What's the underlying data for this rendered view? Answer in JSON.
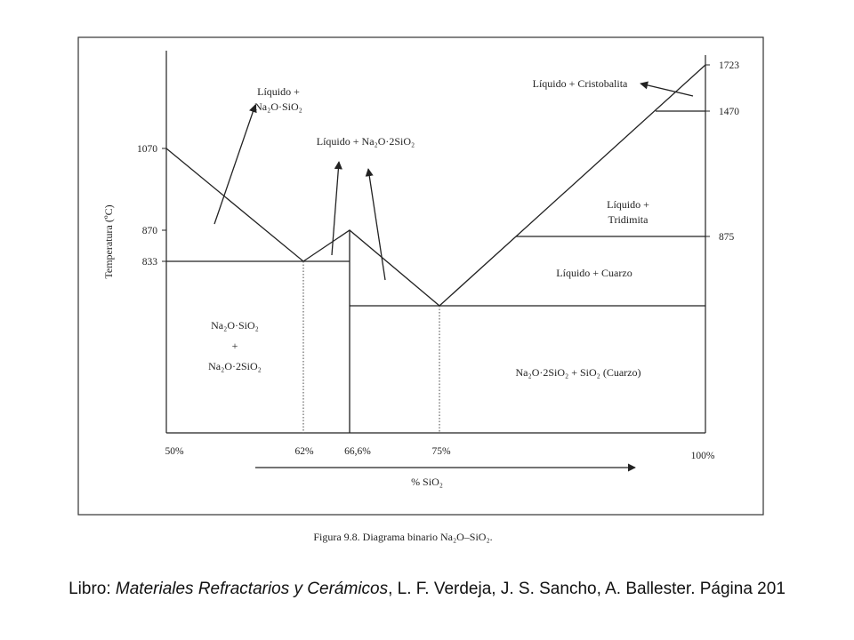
{
  "diagram": {
    "y_axis_label": "Temperatura (ºC)",
    "y_ticks_left": [
      "1070",
      "870",
      "833"
    ],
    "y_ticks_right": [
      "1723",
      "1470",
      "875"
    ],
    "x_ticks": [
      "50%",
      "62%",
      "66,6%",
      "75%",
      "100%"
    ],
    "x_axis_label": "%  SiO₂",
    "regions": {
      "liq_metasilicate_l1": "Líquido +",
      "liq_metasilicate_l2": "Na₂O·SiO₂",
      "liq_disilicate": "Líquido + Na₂O·2SiO₂",
      "liq_cristobalite": "Líquido + Cristobalita",
      "liq_tridymite_l1": "Líquido +",
      "liq_tridymite_l2": "Tridimita",
      "liq_quartz": "Líquido + Cuarzo",
      "solid_left_l1": "Na₂O·SiO₂",
      "solid_left_l2": "+",
      "solid_left_l3": "Na₂O·2SiO₂",
      "solid_right": "Na₂O·2SiO₂  +  SiO₂ (Cuarzo)"
    },
    "caption": "Figura 9.8. Diagrama binario Na₂O–SiO₂."
  },
  "credit": {
    "prefix": "Libro: ",
    "title": "Materiales Refractarios y Cerámicos",
    "rest": ", L. F. Verdeja, J. S. Sancho, A. Ballester. Página 201"
  }
}
